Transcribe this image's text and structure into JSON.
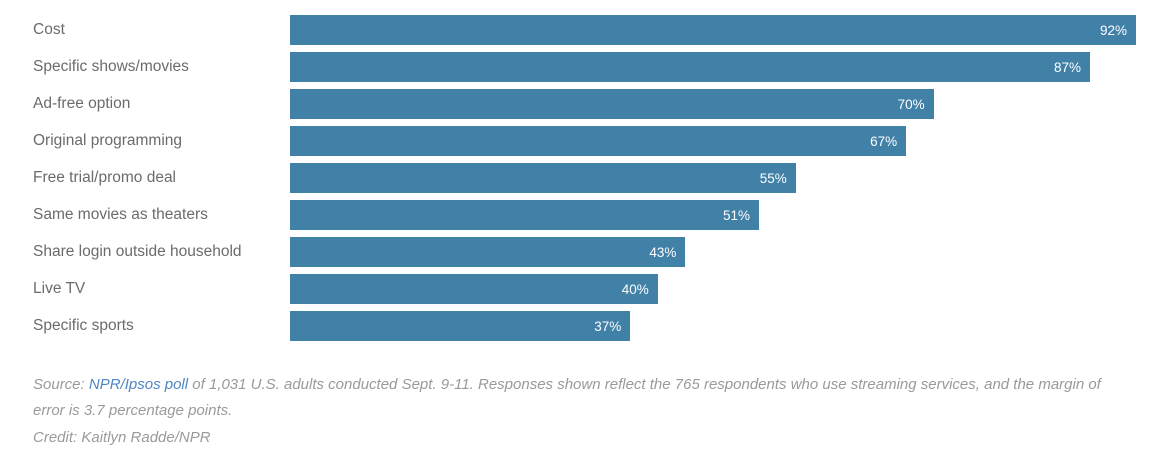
{
  "chart_data": {
    "type": "bar",
    "orientation": "horizontal",
    "title": "",
    "xlabel": "",
    "ylabel": "",
    "xlim": [
      0,
      100
    ],
    "grid": false,
    "legend": false,
    "categories": [
      "Cost",
      "Specific shows/movies",
      "Ad-free option",
      "Original programming",
      "Free trial/promo deal",
      "Same movies as theaters",
      "Share login outside household",
      "Live TV",
      "Specific sports"
    ],
    "values": [
      92,
      87,
      70,
      67,
      55,
      51,
      43,
      40,
      37
    ],
    "value_labels": [
      "92%",
      "87%",
      "70%",
      "67%",
      "55%",
      "51%",
      "43%",
      "40%",
      "37%"
    ],
    "bar_color": "#4181a8",
    "value_label_color": "#ffffff",
    "category_label_color": "#6b6b6b"
  },
  "footer": {
    "source_prefix": "Source: ",
    "source_link": "NPR/Ipsos poll",
    "source_rest": " of 1,031 U.S. adults conducted Sept. 9-11. Responses shown reflect the 765 respondents who use streaming services, and the margin of error is 3.7 percentage points.",
    "credit": "Credit: Kaitlyn Radde/NPR",
    "link_color": "#4f86c6",
    "text_color": "#9a9a9a"
  }
}
